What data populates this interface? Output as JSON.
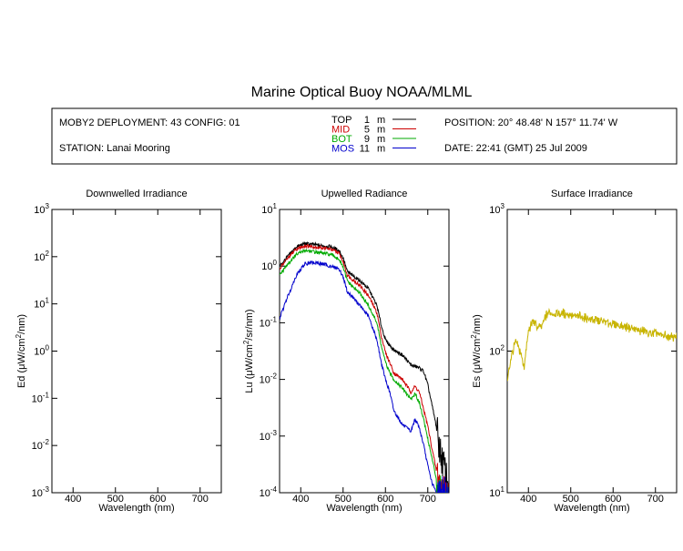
{
  "title": "Marine Optical Buoy NOAA/MLML",
  "info": {
    "deployment": "MOBY2 DEPLOYMENT: 43 CONFIG: 01",
    "station": "STATION: Lanai Mooring",
    "position": "POSITION: 20° 48.48' N   157° 11.74' W",
    "date": "DATE: 22:41 (GMT) 25 Jul 2009"
  },
  "legend": [
    {
      "name": "TOP",
      "depth": "1",
      "unit": "m",
      "color": "#000000"
    },
    {
      "name": "MID",
      "depth": "5",
      "unit": "m",
      "color": "#cc0000"
    },
    {
      "name": "BOT",
      "depth": "9",
      "unit": "m",
      "color": "#00aa00"
    },
    {
      "name": "MOS",
      "depth": "11",
      "unit": "m",
      "color": "#0000cc"
    }
  ],
  "chart_data": [
    {
      "type": "line",
      "title": "Downwelled Irradiance",
      "xlabel": "Wavelength (nm)",
      "ylabel_prefix": "Ed  (",
      "ylabel_mu": "μ",
      "ylabel_unit": "W/cm",
      "ylabel_sup": "2",
      "ylabel_suffix": "/nm)",
      "xlim": [
        350,
        750
      ],
      "ylim_log10": [
        -3,
        3
      ],
      "xticks": [
        400,
        500,
        600,
        700
      ],
      "yticks_exp": [
        "-3",
        "-2",
        "-1",
        "0",
        "1",
        "2",
        "3"
      ],
      "series": []
    },
    {
      "type": "line",
      "title": "Upwelled Radiance",
      "xlabel": "Wavelength (nm)",
      "ylabel_prefix": "Lu  (",
      "ylabel_mu": "μ",
      "ylabel_unit": "W/cm",
      "ylabel_sup": "2",
      "ylabel_suffix": "/sr/nm)",
      "xlim": [
        350,
        750
      ],
      "ylim_log10": [
        -4,
        1
      ],
      "xticks": [
        400,
        500,
        600,
        700
      ],
      "yticks_exp": [
        "-4",
        "-3",
        "-2",
        "-1",
        "0",
        "1"
      ],
      "series": [
        {
          "name": "TOP",
          "color": "#000000",
          "start": 350,
          "end": 748,
          "x": [
            350,
            370,
            390,
            410,
            430,
            450,
            470,
            490,
            500,
            510,
            520,
            540,
            560,
            580,
            590,
            600,
            610,
            620,
            640,
            660,
            670,
            680,
            690,
            700,
            710,
            720,
            730,
            740,
            748
          ],
          "y": [
            1.0,
            1.5,
            2.2,
            2.5,
            2.4,
            2.3,
            2.2,
            1.9,
            1.4,
            0.8,
            0.7,
            0.55,
            0.4,
            0.2,
            0.09,
            0.05,
            0.04,
            0.033,
            0.027,
            0.018,
            0.017,
            0.016,
            0.014,
            0.008,
            0.0035,
            0.0015,
            0.0005,
            0.00025,
            0.00015
          ]
        },
        {
          "name": "MID",
          "color": "#cc0000",
          "start": 350,
          "end": 748,
          "x": [
            350,
            370,
            390,
            410,
            430,
            450,
            470,
            490,
            500,
            510,
            520,
            540,
            560,
            580,
            590,
            600,
            610,
            620,
            640,
            660,
            670,
            680,
            690,
            700,
            710,
            720,
            730,
            740,
            748
          ],
          "y": [
            0.9,
            1.4,
            2.0,
            2.3,
            2.2,
            2.1,
            2.0,
            1.7,
            1.2,
            0.7,
            0.6,
            0.45,
            0.3,
            0.15,
            0.06,
            0.03,
            0.02,
            0.013,
            0.01,
            0.006,
            0.0075,
            0.006,
            0.003,
            0.0015,
            0.0006,
            0.00025,
            0.00015,
            0.0001,
            0.0001
          ]
        },
        {
          "name": "BOT",
          "color": "#00aa00",
          "start": 350,
          "end": 748,
          "x": [
            350,
            370,
            390,
            410,
            430,
            450,
            470,
            490,
            500,
            510,
            520,
            540,
            560,
            580,
            590,
            600,
            610,
            620,
            640,
            660,
            670,
            680,
            690,
            700,
            710,
            720,
            730,
            740,
            748
          ],
          "y": [
            0.7,
            1.1,
            1.6,
            1.9,
            1.8,
            1.7,
            1.6,
            1.35,
            0.95,
            0.55,
            0.45,
            0.33,
            0.2,
            0.1,
            0.04,
            0.02,
            0.013,
            0.01,
            0.007,
            0.0045,
            0.0055,
            0.004,
            0.002,
            0.0009,
            0.0004,
            0.00018,
            0.0001,
            0.0001,
            0.0001
          ]
        },
        {
          "name": "MOS",
          "color": "#0000cc",
          "start": 350,
          "end": 748,
          "x": [
            350,
            370,
            390,
            410,
            430,
            450,
            470,
            490,
            500,
            510,
            520,
            540,
            560,
            580,
            590,
            600,
            610,
            620,
            640,
            660,
            670,
            680,
            690,
            700,
            710,
            720,
            730,
            740,
            748
          ],
          "y": [
            0.12,
            0.3,
            0.7,
            1.1,
            1.15,
            1.1,
            1.0,
            0.9,
            0.65,
            0.35,
            0.3,
            0.2,
            0.13,
            0.05,
            0.02,
            0.01,
            0.006,
            0.0028,
            0.0016,
            0.0012,
            0.002,
            0.0014,
            0.0007,
            0.0003,
            0.00015,
            0.0001,
            0.0001,
            0.0001,
            0.0001
          ]
        }
      ]
    },
    {
      "type": "line",
      "title": "Surface Irradiance",
      "xlabel": "Wavelength (nm)",
      "ylabel_prefix": "Es  (",
      "ylabel_mu": "μ",
      "ylabel_unit": "W/cm",
      "ylabel_sup": "2",
      "ylabel_suffix": "/nm)",
      "xlim": [
        350,
        750
      ],
      "ylim_log10": [
        1,
        3
      ],
      "xticks": [
        400,
        500,
        600,
        700
      ],
      "yticks_exp": [
        "1",
        "2",
        "3"
      ],
      "series": [
        {
          "name": "Es",
          "color": "#c8b400",
          "start": 350,
          "end": 750,
          "x": [
            350,
            360,
            370,
            380,
            390,
            400,
            410,
            420,
            430,
            440,
            450,
            460,
            480,
            500,
            520,
            540,
            560,
            580,
            600,
            620,
            640,
            660,
            680,
            700,
            720,
            740,
            750
          ],
          "y": [
            60,
            95,
            115,
            100,
            78,
            140,
            160,
            150,
            145,
            175,
            190,
            185,
            185,
            180,
            175,
            170,
            165,
            160,
            155,
            150,
            145,
            140,
            135,
            132,
            128,
            125,
            130
          ]
        }
      ]
    }
  ]
}
